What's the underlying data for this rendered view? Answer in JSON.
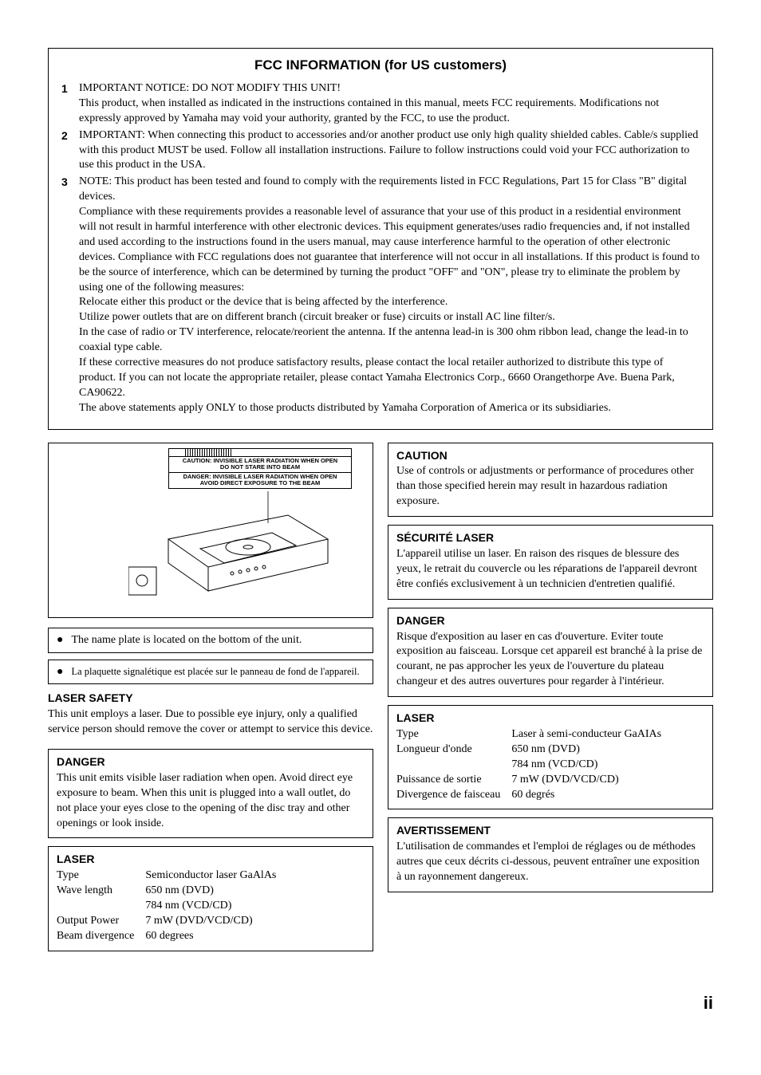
{
  "fcc": {
    "title": "FCC INFORMATION (for US customers)",
    "items": [
      {
        "n": "1",
        "text": "IMPORTANT NOTICE: DO NOT MODIFY THIS UNIT!\nThis product, when installed as indicated in the instructions contained in this manual, meets FCC requirements. Modifications not expressly approved by Yamaha may void your authority, granted by the FCC, to use the product."
      },
      {
        "n": "2",
        "text": "IMPORTANT: When connecting this product to accessories and/or another product use only high quality shielded cables. Cable/s supplied with this product MUST be used. Follow all installation instructions. Failure to follow instructions could void your FCC authorization to use this product in the USA."
      },
      {
        "n": "3",
        "text": "NOTE: This product has been tested and found to comply with the requirements listed in FCC Regulations, Part 15 for Class \"B\" digital devices.\nCompliance with these requirements provides a reasonable level of assurance that your use of this product in a residential environment will not result in harmful interference with other electronic devices. This equipment generates/uses radio frequencies and, if not installed and used according to the instructions found in the users manual, may cause interference harmful to the operation of other electronic devices. Compliance with FCC regulations does not guarantee that interference will not occur in all installations. If this product is found to be the source of interference, which can be determined by turning the product \"OFF\" and \"ON\", please try to eliminate the problem by using one of the following measures:\nRelocate either this product or the device that is being affected by the interference.\nUtilize power outlets that are on different branch (circuit breaker or fuse) circuits or install AC line filter/s.\nIn the case of radio or TV interference, relocate/reorient the antenna. If the antenna lead-in is 300 ohm ribbon lead, change the lead-in to coaxial type cable.\nIf these corrective measures do not produce satisfactory results, please contact the local retailer authorized to distribute this type of product. If you can not locate the appropriate retailer, please contact Yamaha Electronics Corp., 6660 Orangethorpe Ave. Buena Park, CA90622.\nThe above statements apply ONLY to those products distributed by Yamaha Corporation of America or its subsidiaries."
      }
    ]
  },
  "device_label": {
    "l1": "CAUTION: INVISIBLE LASER RADIATION WHEN OPEN",
    "l2": "DO NOT STARE INTO BEAM",
    "l3": "DANGER: INVISIBLE LASER RADIATION WHEN OPEN",
    "l4": "AVOID DIRECT EXPOSURE TO THE BEAM"
  },
  "note_en": "The name plate is located on the bottom of the unit.",
  "note_fr": "La plaquette signalétique est placée sur le panneau de fond de l'appareil.",
  "left": {
    "safety_h": "LASER SAFETY",
    "safety_b": "This unit employs a laser. Due to possible eye injury, only a qualified service person should remove the cover or attempt to service this device.",
    "danger_h": "DANGER",
    "danger_b": "This unit emits visible laser radiation when open. Avoid direct eye exposure to beam. When this unit is plugged into a wall outlet, do not place your eyes close to the opening of the disc tray and other openings or look inside.",
    "laser_h": "LASER",
    "laser": {
      "k1": "Type",
      "v1": "Semiconductor laser GaAlAs",
      "k2": "Wave length",
      "v2": "650 nm (DVD)\n784 nm (VCD/CD)",
      "k3": "Output Power",
      "v3": "7 mW (DVD/VCD/CD)",
      "k4": "Beam divergence",
      "v4": "60 degrees"
    }
  },
  "right": {
    "caution_h": "CAUTION",
    "caution_b": "Use of controls or adjustments or performance of procedures other than those specified herein may result in hazardous radiation exposure.",
    "secu_h": "SÉCURITÉ LASER",
    "secu_b": "L'appareil utilise un laser. En raison des risques de blessure des yeux, le retrait du couvercle ou les réparations de l'appareil devront être confiés exclusivement à un technicien d'entretien qualifié.",
    "danger_h": "DANGER",
    "danger_b": "Risque d'exposition au laser en cas d'ouverture. Eviter toute exposition au faisceau. Lorsque cet appareil est branché à la prise de courant, ne pas approcher les yeux de l'ouverture du plateau changeur et des autres ouvertures pour regarder à l'intérieur.",
    "laser_h": "LASER",
    "laser": {
      "k1": "Type",
      "v1": "Laser à semi-conducteur GaAIAs",
      "k2": "Longueur d'onde",
      "v2": "650 nm (DVD)\n784 nm (VCD/CD)",
      "k3": "Puissance de sortie",
      "v3": "7 mW (DVD/VCD/CD)",
      "k4": "Divergence de faisceau",
      "v4": "60 degrés"
    },
    "avert_h": "AVERTISSEMENT",
    "avert_b": "L'utilisation de commandes et l'emploi de réglages ou de méthodes autres que ceux décrits ci-dessous, peuvent entraîner une exposition à un rayonnement dangereux."
  },
  "page_num": "ii"
}
